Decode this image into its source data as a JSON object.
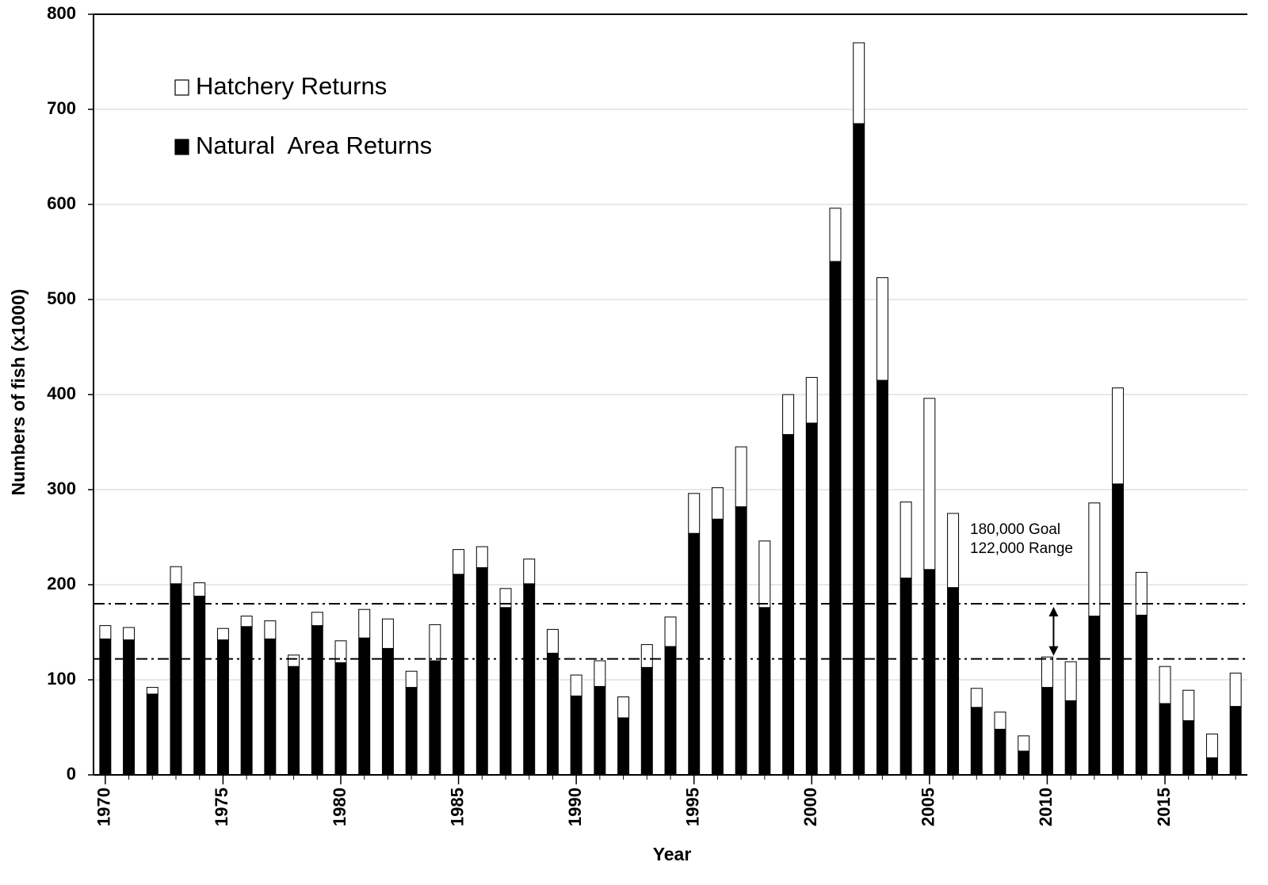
{
  "chart_data": {
    "type": "stacked_bar",
    "xlabel": "Year",
    "ylabel": "Numbers of fish (x1000)",
    "x": [
      1970,
      1971,
      1972,
      1973,
      1974,
      1975,
      1976,
      1977,
      1978,
      1979,
      1980,
      1981,
      1982,
      1983,
      1984,
      1985,
      1986,
      1987,
      1988,
      1989,
      1990,
      1991,
      1992,
      1993,
      1994,
      1995,
      1996,
      1997,
      1998,
      1999,
      2000,
      2001,
      2002,
      2003,
      2004,
      2005,
      2006,
      2007,
      2008,
      2009,
      2010,
      2011,
      2012,
      2013,
      2014,
      2015,
      2016,
      2017,
      2018
    ],
    "series": [
      {
        "name": "Natural  Area Returns",
        "color": "#000000",
        "values": [
          143,
          142,
          85,
          201,
          188,
          142,
          156,
          143,
          114,
          157,
          118,
          144,
          133,
          92,
          120,
          211,
          218,
          176,
          201,
          128,
          83,
          93,
          60,
          113,
          135,
          254,
          269,
          282,
          176,
          358,
          370,
          540,
          685,
          415,
          207,
          216,
          197,
          71,
          48,
          25,
          92,
          78,
          167,
          306,
          168,
          75,
          57,
          18,
          72
        ]
      },
      {
        "name": "Hatchery Returns",
        "color": "#ffffff",
        "values": [
          14,
          13,
          7,
          18,
          14,
          12,
          11,
          19,
          12,
          14,
          23,
          30,
          31,
          17,
          38,
          26,
          22,
          20,
          26,
          25,
          22,
          27,
          22,
          24,
          31,
          42,
          33,
          63,
          70,
          42,
          48,
          56,
          85,
          108,
          80,
          180,
          78,
          20,
          18,
          16,
          32,
          41,
          119,
          101,
          45,
          39,
          32,
          25,
          35
        ]
      }
    ],
    "xlim": [
      1969.5,
      2018.5
    ],
    "xticks": [
      1970,
      1975,
      1980,
      1985,
      1990,
      1995,
      2000,
      2005,
      2010,
      2015
    ],
    "ylim": [
      0,
      800
    ],
    "yticks": [
      0,
      100,
      200,
      300,
      400,
      500,
      600,
      700,
      800
    ],
    "grid": true,
    "reference_lines": [
      180,
      122
    ],
    "annotations": [
      "180,000  Goal",
      "122,000 Range"
    ],
    "arrow_x": 2010,
    "legend": "upper left"
  }
}
